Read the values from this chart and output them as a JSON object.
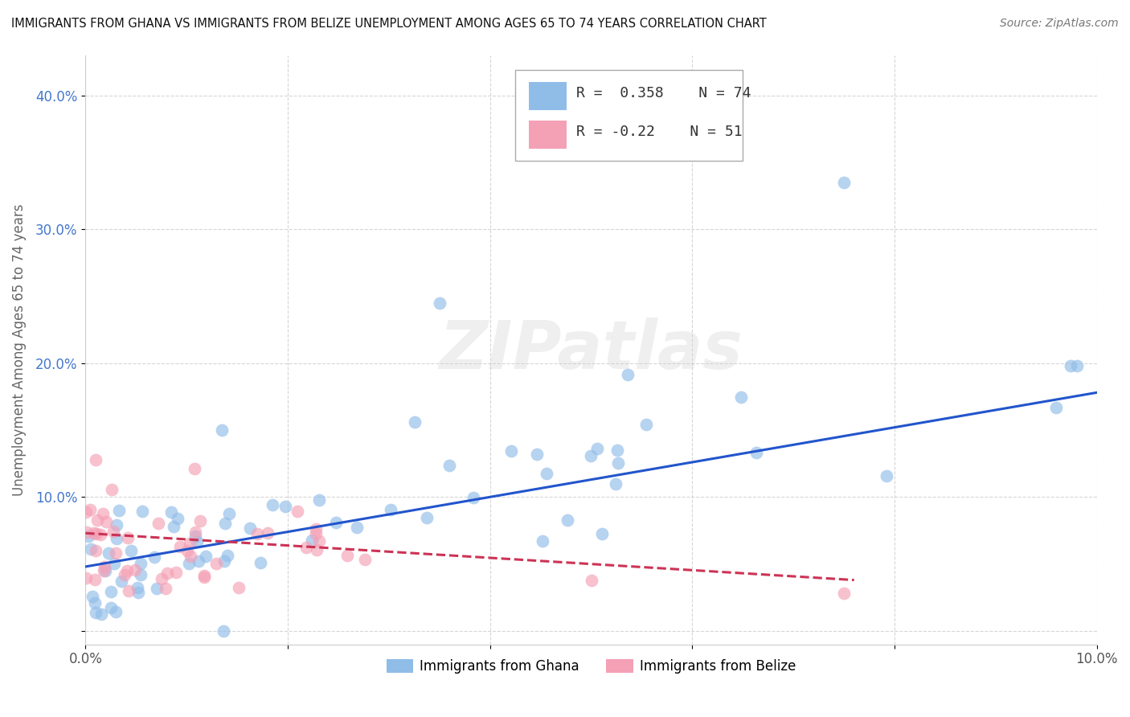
{
  "title": "IMMIGRANTS FROM GHANA VS IMMIGRANTS FROM BELIZE UNEMPLOYMENT AMONG AGES 65 TO 74 YEARS CORRELATION CHART",
  "source": "Source: ZipAtlas.com",
  "ylabel": "Unemployment Among Ages 65 to 74 years",
  "xlim": [
    0.0,
    0.1
  ],
  "ylim": [
    -0.01,
    0.43
  ],
  "xtick_vals": [
    0.0,
    0.02,
    0.04,
    0.06,
    0.08,
    0.1
  ],
  "xtick_labels": [
    "0.0%",
    "",
    "",
    "",
    "",
    "10.0%"
  ],
  "ytick_vals": [
    0.0,
    0.1,
    0.2,
    0.3,
    0.4
  ],
  "ytick_labels": [
    "",
    "10.0%",
    "20.0%",
    "30.0%",
    "40.0%"
  ],
  "ghana_color": "#90bce8",
  "belize_color": "#f4a0b5",
  "ghana_line_color": "#2255cc",
  "belize_line_color": "#cc3355",
  "ghana_R": 0.358,
  "ghana_N": 74,
  "belize_R": -0.22,
  "belize_N": 51,
  "ghana_trend_x": [
    0.0,
    0.1
  ],
  "ghana_trend_y": [
    0.048,
    0.178
  ],
  "belize_trend_x": [
    0.0,
    0.076
  ],
  "belize_trend_y": [
    0.073,
    0.038
  ],
  "watermark": "ZIPatlas",
  "bottom_legend": [
    "Immigrants from Ghana",
    "Immigrants from Belize"
  ]
}
